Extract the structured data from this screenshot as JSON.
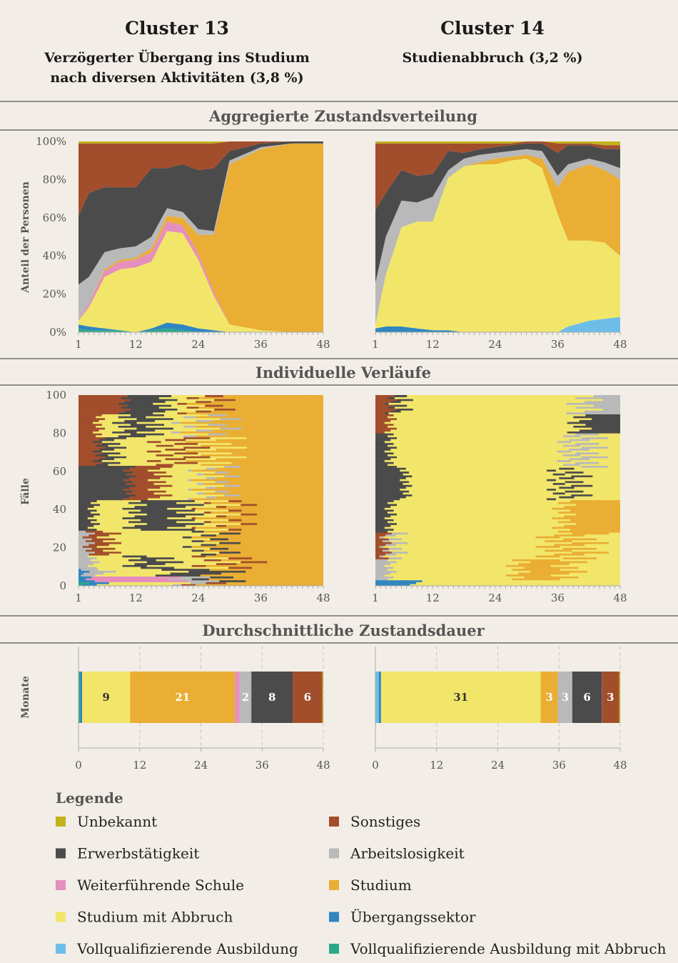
{
  "header": {
    "left_title": "Cluster 13",
    "left_sub_1": "Verzögerter Übergang ins Studium",
    "left_sub_2": "nach diversen Aktivitäten (3,8 %)",
    "right_title": "Cluster 14",
    "right_sub_1": "Studienabbruch (3,2 %)"
  },
  "sections": {
    "agg": "Aggregierte Zustandsverteilung",
    "ind": "Individuelle Verläufe",
    "dur": "Durchschnittliche Zustandsdauer"
  },
  "axes": {
    "agg_ylabel": "Anteil der Personen",
    "ind_ylabel": "Fälle",
    "dur_ylabel": "Monate",
    "agg_yticks": [
      "0%",
      "20%",
      "40%",
      "60%",
      "80%",
      "100%"
    ],
    "ind_yticks": [
      "0",
      "20",
      "40",
      "60",
      "80",
      "100"
    ],
    "xticks_month": [
      "1",
      "12",
      "24",
      "36",
      "48"
    ],
    "xticks_dur": [
      "0",
      "12",
      "24",
      "36",
      "48"
    ]
  },
  "legend": {
    "title": "Legende",
    "items": [
      {
        "key": "unbekannt",
        "label": "Unbekannt",
        "color": "#c2b21b"
      },
      {
        "key": "sonstiges",
        "label": "Sonstiges",
        "color": "#a24e2c"
      },
      {
        "key": "erwerb",
        "label": "Erwerbstätigkeit",
        "color": "#4b4b4b"
      },
      {
        "key": "arbeitslos",
        "label": "Arbeitslosigkeit",
        "color": "#b9b9b9"
      },
      {
        "key": "schule",
        "label": "Weiterführende Schule",
        "color": "#e58fbd"
      },
      {
        "key": "studium",
        "label": "Studium",
        "color": "#e9ae33"
      },
      {
        "key": "abbruch",
        "label": "Studium mit Abbruch",
        "color": "#f2e66a"
      },
      {
        "key": "uebergang",
        "label": "Übergangssektor",
        "color": "#2f86c0"
      },
      {
        "key": "voll",
        "label": "Vollqualifizierende Ausbildung",
        "color": "#6dbde9"
      },
      {
        "key": "vollab",
        "label": "Vollqualifizierende Ausbildung mit Abbruch",
        "color": "#2aa988"
      }
    ]
  },
  "chart_data": [
    {
      "type": "area",
      "title": "Aggregierte Zustandsverteilung",
      "panel": "Cluster 13",
      "ylabel": "Anteil der Personen",
      "x": [
        1,
        3,
        6,
        9,
        12,
        15,
        18,
        21,
        24,
        27,
        30,
        36,
        42,
        48
      ],
      "ylim": [
        0,
        100
      ],
      "stack_order": [
        "vollab",
        "uebergang",
        "voll",
        "abbruch",
        "schule",
        "studium",
        "arbeitslos",
        "erwerb",
        "sonstiges",
        "unbekannt"
      ],
      "series": {
        "vollab": [
          2,
          1,
          1,
          1,
          0,
          1,
          2,
          1,
          0,
          0,
          0,
          0,
          0,
          0
        ],
        "uebergang": [
          2,
          2,
          1,
          0,
          0,
          1,
          3,
          3,
          2,
          1,
          0,
          0,
          0,
          0
        ],
        "voll": [
          0,
          0,
          0,
          0,
          0,
          0,
          0,
          0,
          0,
          0,
          0,
          0,
          0,
          0
        ],
        "abbruch": [
          2,
          10,
          27,
          32,
          34,
          35,
          48,
          48,
          36,
          18,
          4,
          1,
          0,
          0
        ],
        "schule": [
          0,
          2,
          3,
          4,
          4,
          5,
          5,
          4,
          3,
          2,
          0,
          0,
          0,
          0
        ],
        "studium": [
          0,
          0,
          1,
          1,
          1,
          2,
          3,
          4,
          10,
          30,
          84,
          95,
          99,
          99
        ],
        "arbeitslos": [
          19,
          14,
          9,
          6,
          6,
          6,
          4,
          3,
          3,
          2,
          2,
          1,
          0,
          0
        ],
        "erwerb": [
          36,
          44,
          34,
          32,
          31,
          36,
          21,
          25,
          31,
          33,
          5,
          2,
          1,
          1
        ],
        "sonstiges": [
          38,
          26,
          23,
          23,
          23,
          13,
          13,
          11,
          14,
          13,
          5,
          1,
          0,
          0
        ],
        "unbekannt": [
          1,
          1,
          1,
          1,
          1,
          1,
          1,
          1,
          1,
          1,
          0,
          0,
          0,
          0
        ]
      }
    },
    {
      "type": "area",
      "title": "Aggregierte Zustandsverteilung",
      "panel": "Cluster 14",
      "ylabel": "Anteil der Personen",
      "x": [
        1,
        3,
        6,
        9,
        12,
        15,
        18,
        21,
        24,
        27,
        30,
        33,
        36,
        38,
        42,
        45,
        48
      ],
      "ylim": [
        0,
        100
      ],
      "stack_order": [
        "vollab",
        "uebergang",
        "voll",
        "abbruch",
        "schule",
        "studium",
        "arbeitslos",
        "erwerb",
        "sonstiges",
        "unbekannt"
      ],
      "series": {
        "vollab": [
          0,
          0,
          0,
          0,
          0,
          0,
          0,
          0,
          0,
          0,
          0,
          0,
          0,
          0,
          0,
          0,
          0
        ],
        "uebergang": [
          2,
          3,
          3,
          2,
          1,
          1,
          0,
          0,
          0,
          0,
          0,
          0,
          0,
          0,
          0,
          0,
          0
        ],
        "voll": [
          0,
          0,
          0,
          0,
          0,
          0,
          0,
          0,
          0,
          0,
          0,
          0,
          0,
          3,
          6,
          7,
          8
        ],
        "abbruch": [
          2,
          27,
          52,
          56,
          57,
          80,
          87,
          88,
          88,
          90,
          91,
          86,
          62,
          45,
          42,
          40,
          32
        ],
        "schule": [
          0,
          0,
          0,
          0,
          0,
          0,
          0,
          0,
          0,
          0,
          0,
          0,
          0,
          0,
          0,
          0,
          0
        ],
        "studium": [
          0,
          0,
          0,
          0,
          0,
          0,
          0,
          1,
          3,
          2,
          2,
          5,
          14,
          36,
          40,
          38,
          40
        ],
        "arbeitslos": [
          22,
          20,
          14,
          10,
          13,
          4,
          4,
          4,
          3,
          3,
          3,
          4,
          6,
          4,
          3,
          4,
          6
        ],
        "erwerb": [
          38,
          23,
          16,
          14,
          12,
          10,
          3,
          3,
          3,
          3,
          3,
          4,
          12,
          10,
          7,
          7,
          10
        ],
        "sonstiges": [
          35,
          26,
          14,
          17,
          16,
          4,
          5,
          3,
          2,
          1,
          1,
          1,
          5,
          1,
          1,
          2,
          2
        ],
        "unbekannt": [
          1,
          1,
          1,
          1,
          1,
          1,
          1,
          1,
          1,
          1,
          0,
          0,
          1,
          1,
          1,
          2,
          2
        ]
      }
    },
    {
      "type": "bar",
      "title": "Durchschnittliche Zustandsdauer",
      "panel": "Cluster 13",
      "ylabel": "Monate",
      "xlim": [
        0,
        48
      ],
      "segments": [
        {
          "state": "vollab",
          "value": 0.3,
          "label": ""
        },
        {
          "state": "uebergang",
          "value": 0.4,
          "label": ""
        },
        {
          "state": "abbruch",
          "value": 9.4,
          "label": "9"
        },
        {
          "state": "studium",
          "value": 20.6,
          "label": "21"
        },
        {
          "state": "schule",
          "value": 0.9,
          "label": ""
        },
        {
          "state": "arbeitslos",
          "value": 2.3,
          "label": "2"
        },
        {
          "state": "erwerb",
          "value": 8.1,
          "label": "8"
        },
        {
          "state": "sonstiges",
          "value": 5.8,
          "label": "6"
        },
        {
          "state": "unbekannt",
          "value": 0.2,
          "label": ""
        }
      ]
    },
    {
      "type": "bar",
      "title": "Durchschnittliche Zustandsdauer",
      "panel": "Cluster 14",
      "ylabel": "Monate",
      "xlim": [
        0,
        48
      ],
      "segments": [
        {
          "state": "voll",
          "value": 0.7,
          "label": ""
        },
        {
          "state": "uebergang",
          "value": 0.4,
          "label": ""
        },
        {
          "state": "abbruch",
          "value": 31.3,
          "label": "31"
        },
        {
          "state": "studium",
          "value": 3.4,
          "label": "3"
        },
        {
          "state": "arbeitslos",
          "value": 2.8,
          "label": "3"
        },
        {
          "state": "erwerb",
          "value": 5.8,
          "label": "6"
        },
        {
          "state": "sonstiges",
          "value": 3.4,
          "label": "3"
        },
        {
          "state": "unbekannt",
          "value": 0.2,
          "label": ""
        }
      ]
    },
    {
      "type": "heatmap",
      "title": "Individuelle Verläufe",
      "panel": "Cluster 13",
      "ylabel": "Fälle",
      "x_range": [
        1,
        48
      ],
      "ylim": [
        0,
        100
      ],
      "bands": [
        {
          "y": [
            0,
            2
          ],
          "pattern": [
            [
              "vollab",
              2
            ],
            [
              "uebergang",
              4
            ],
            [
              "abbruch",
              16
            ],
            [
              "arbeitslos",
              3
            ],
            [
              "sonstiges",
              4
            ],
            [
              "studium",
              19
            ]
          ]
        },
        {
          "y": [
            2,
            5
          ],
          "pattern": [
            [
              "uebergang",
              2
            ],
            [
              "schule",
              17
            ],
            [
              "arbeitslos",
              5
            ],
            [
              "erwerb",
              4
            ],
            [
              "studium",
              20
            ]
          ]
        },
        {
          "y": [
            5,
            9
          ],
          "pattern": [
            [
              "uebergang",
              1
            ],
            [
              "arbeitslos",
              4
            ],
            [
              "abbruch",
              13
            ],
            [
              "erwerb",
              10
            ],
            [
              "studium",
              20
            ]
          ]
        },
        {
          "y": [
            9,
            16
          ],
          "pattern": [
            [
              "arbeitslos",
              3
            ],
            [
              "abbruch",
              8
            ],
            [
              "erwerb",
              6
            ],
            [
              "abbruch",
              10
            ],
            [
              "sonstiges",
              4
            ],
            [
              "studium",
              17
            ]
          ]
        },
        {
          "y": [
            16,
            29
          ],
          "pattern": [
            [
              "arbeitslos",
              2
            ],
            [
              "sonstiges",
              4
            ],
            [
              "abbruch",
              18
            ],
            [
              "erwerb",
              3
            ],
            [
              "studium",
              21
            ]
          ]
        },
        {
          "y": [
            29,
            45
          ],
          "pattern": [
            [
              "erwerb",
              3
            ],
            [
              "abbruch",
              8
            ],
            [
              "erwerb",
              10
            ],
            [
              "abbruch",
              6
            ],
            [
              "sonstiges",
              2
            ],
            [
              "studium",
              19
            ]
          ]
        },
        {
          "y": [
            45,
            63
          ],
          "pattern": [
            [
              "erwerb",
              10
            ],
            [
              "sonstiges",
              6
            ],
            [
              "abbruch",
              9
            ],
            [
              "arbeitslos",
              2
            ],
            [
              "studium",
              21
            ]
          ]
        },
        {
          "y": [
            63,
            78
          ],
          "pattern": [
            [
              "sonstiges",
              4
            ],
            [
              "erwerb",
              3
            ],
            [
              "abbruch",
              10
            ],
            [
              "sonstiges",
              4
            ],
            [
              "abbruch",
              6
            ],
            [
              "studium",
              21
            ]
          ]
        },
        {
          "y": [
            78,
            90
          ],
          "pattern": [
            [
              "sonstiges",
              4
            ],
            [
              "abbruch",
              5
            ],
            [
              "erwerb",
              6
            ],
            [
              "abbruch",
              8
            ],
            [
              "arbeitslos",
              3
            ],
            [
              "studium",
              22
            ]
          ]
        },
        {
          "y": [
            90,
            100
          ],
          "pattern": [
            [
              "sonstiges",
              9
            ],
            [
              "erwerb",
              8
            ],
            [
              "abbruch",
              6
            ],
            [
              "sonstiges",
              3
            ],
            [
              "studium",
              22
            ]
          ]
        }
      ]
    },
    {
      "type": "heatmap",
      "title": "Individuelle Verläufe",
      "panel": "Cluster 14",
      "ylabel": "Fälle",
      "x_range": [
        1,
        48
      ],
      "ylim": [
        0,
        100
      ],
      "bands": [
        {
          "y": [
            0,
            3
          ],
          "pattern": [
            [
              "uebergang",
              8
            ],
            [
              "abbruch",
              40
            ]
          ]
        },
        {
          "y": [
            3,
            14
          ],
          "pattern": [
            [
              "arbeitslos",
              3
            ],
            [
              "abbruch",
              25
            ],
            [
              "studium",
              10
            ],
            [
              "abbruch",
              10
            ]
          ]
        },
        {
          "y": [
            14,
            28
          ],
          "pattern": [
            [
              "sonstiges",
              2
            ],
            [
              "arbeitslos",
              2
            ],
            [
              "abbruch",
              31
            ],
            [
              "studium",
              6
            ],
            [
              "abbruch",
              7
            ]
          ]
        },
        {
          "y": [
            28,
            45
          ],
          "pattern": [
            [
              "erwerb",
              3
            ],
            [
              "abbruch",
              34
            ],
            [
              "studium",
              11
            ]
          ]
        },
        {
          "y": [
            45,
            62
          ],
          "pattern": [
            [
              "erwerb",
              6
            ],
            [
              "abbruch",
              30
            ],
            [
              "erwerb",
              3
            ],
            [
              "abbruch",
              9
            ]
          ]
        },
        {
          "y": [
            62,
            80
          ],
          "pattern": [
            [
              "erwerb",
              3
            ],
            [
              "abbruch",
              35
            ],
            [
              "arbeitslos",
              4
            ],
            [
              "abbruch",
              6
            ]
          ]
        },
        {
          "y": [
            80,
            90
          ],
          "pattern": [
            [
              "sonstiges",
              3
            ],
            [
              "abbruch",
              37
            ],
            [
              "erwerb",
              8
            ]
          ]
        },
        {
          "y": [
            90,
            100
          ],
          "pattern": [
            [
              "sonstiges",
              3
            ],
            [
              "erwerb",
              2
            ],
            [
              "abbruch",
              36
            ],
            [
              "arbeitslos",
              7
            ]
          ]
        }
      ]
    }
  ]
}
